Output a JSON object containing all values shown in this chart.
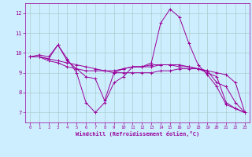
{
  "background_color": "#cceeff",
  "line_color": "#990099",
  "grid_color": "#aacccc",
  "xlabel": "Windchill (Refroidissement éolien,°C)",
  "xlim": [
    -0.5,
    23.5
  ],
  "ylim": [
    6.5,
    12.5
  ],
  "yticks": [
    7,
    8,
    9,
    10,
    11,
    12
  ],
  "xticks": [
    0,
    1,
    2,
    3,
    4,
    5,
    6,
    7,
    8,
    9,
    10,
    11,
    12,
    13,
    14,
    15,
    16,
    17,
    18,
    19,
    20,
    21,
    22,
    23
  ],
  "series": [
    {
      "x": [
        0,
        1,
        2,
        3,
        4,
        5,
        6,
        7,
        8,
        9,
        10,
        11,
        12,
        13,
        14,
        15,
        16,
        17,
        18,
        19,
        20,
        21,
        22,
        23
      ],
      "y": [
        9.8,
        9.9,
        9.8,
        10.4,
        9.7,
        9.0,
        7.5,
        7.0,
        7.5,
        8.5,
        8.8,
        9.3,
        9.3,
        9.5,
        11.5,
        12.2,
        11.8,
        10.5,
        9.4,
        8.9,
        8.3,
        7.4,
        7.2,
        7.0
      ]
    },
    {
      "x": [
        0,
        1,
        2,
        3,
        4,
        5,
        6,
        7,
        8,
        9,
        10,
        11,
        12,
        13,
        14,
        15,
        16,
        17,
        18,
        19,
        20,
        21,
        22,
        23
      ],
      "y": [
        9.8,
        9.8,
        9.6,
        9.5,
        9.3,
        9.2,
        9.1,
        9.1,
        9.1,
        9.1,
        9.2,
        9.3,
        9.3,
        9.3,
        9.4,
        9.4,
        9.3,
        9.3,
        9.2,
        9.1,
        9.0,
        8.9,
        8.5,
        7.0
      ]
    },
    {
      "x": [
        0,
        1,
        2,
        3,
        4,
        5,
        6,
        7,
        8,
        9,
        10,
        11,
        12,
        13,
        14,
        15,
        16,
        17,
        18,
        19,
        20,
        21,
        22,
        23
      ],
      "y": [
        9.8,
        9.8,
        9.7,
        9.6,
        9.5,
        9.4,
        9.3,
        9.2,
        9.1,
        9.0,
        9.0,
        9.0,
        9.0,
        9.0,
        9.1,
        9.1,
        9.2,
        9.2,
        9.2,
        9.1,
        8.5,
        8.3,
        7.5,
        7.0
      ]
    },
    {
      "x": [
        0,
        1,
        2,
        3,
        4,
        5,
        6,
        7,
        8,
        9,
        10,
        11,
        12,
        13,
        14,
        15,
        16,
        17,
        18,
        19,
        20,
        21,
        22,
        23
      ],
      "y": [
        9.8,
        9.8,
        9.7,
        10.4,
        9.6,
        9.2,
        8.8,
        8.7,
        7.6,
        9.0,
        9.2,
        9.3,
        9.3,
        9.4,
        9.4,
        9.4,
        9.4,
        9.3,
        9.2,
        9.0,
        8.8,
        7.5,
        7.2,
        7.0
      ]
    }
  ]
}
